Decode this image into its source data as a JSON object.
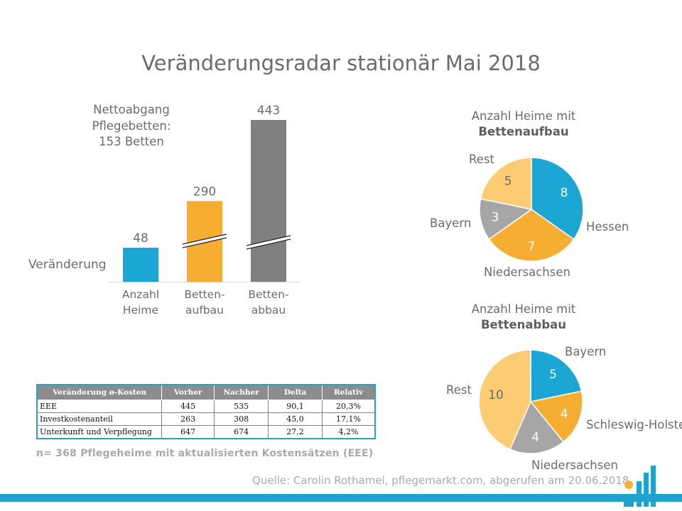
{
  "title": "Veränderungsradar stationär Mai 2018",
  "netto": {
    "line1": "Nettoabgang",
    "line2": "Pflegebetten:",
    "line3": "153 Betten"
  },
  "row_label": "Veränderung",
  "colors": {
    "blue": "#1ca6d3",
    "orange": "#f5ae32",
    "gray_dark": "#808080",
    "gray_light": "#a6a6a6",
    "yellow_light": "#fbcc74",
    "table_border": "#27a3c9"
  },
  "chart_data": [
    {
      "type": "bar",
      "categories": [
        "Anzahl Heime",
        "Betten-aufbau",
        "Betten-abbau"
      ],
      "category_lines": [
        [
          "Anzahl",
          "Heime"
        ],
        [
          "Betten-",
          "aufbau"
        ],
        [
          "Betten-",
          "abbau"
        ]
      ],
      "values": [
        48,
        290,
        443
      ],
      "data_labels": [
        "48",
        "290",
        "443"
      ],
      "colors": [
        "#1ca6d3",
        "#f5ae32",
        "#808080"
      ],
      "axis_break": [
        false,
        true,
        true
      ]
    },
    {
      "type": "pie",
      "title_line1": "Anzahl Heime mit",
      "title_line2": "Bettenaufbau",
      "labels": [
        "Hessen",
        "Niedersachsen",
        "Bayern",
        "Rest"
      ],
      "values": [
        8,
        7,
        3,
        5
      ],
      "colors": [
        "#1ca6d3",
        "#f5ae32",
        "#a6a6a6",
        "#fbcc74"
      ]
    },
    {
      "type": "pie",
      "title_line1": "Anzahl Heime mit",
      "title_line2": "Bettenabbau",
      "labels": [
        "Bayern",
        "Schleswig-Holstein",
        "Niedersachsen",
        "Rest"
      ],
      "values": [
        5,
        4,
        4,
        10
      ],
      "colors": [
        "#1ca6d3",
        "#f5ae32",
        "#a6a6a6",
        "#fbcc74"
      ]
    }
  ],
  "table": {
    "headers": [
      "Veränderung ø-Kosten",
      "Vorher",
      "Nachher",
      "Delta",
      "Relativ"
    ],
    "rows": [
      [
        "EEE",
        "445",
        "535",
        "90,1",
        "20,3%"
      ],
      [
        "Investkostenanteil",
        "263",
        "308",
        "45,0",
        "17,1%"
      ],
      [
        "Unterkunft und Verpflegung",
        "647",
        "674",
        "27,2",
        "4,2%"
      ]
    ]
  },
  "note": "n= 368 Pflegeheime mit aktualisierten  Kostensätzen (EEE)",
  "source": "Quelle: Carolin Rothamel, pflegemarkt.com, abgerufen am 20.06.2018"
}
